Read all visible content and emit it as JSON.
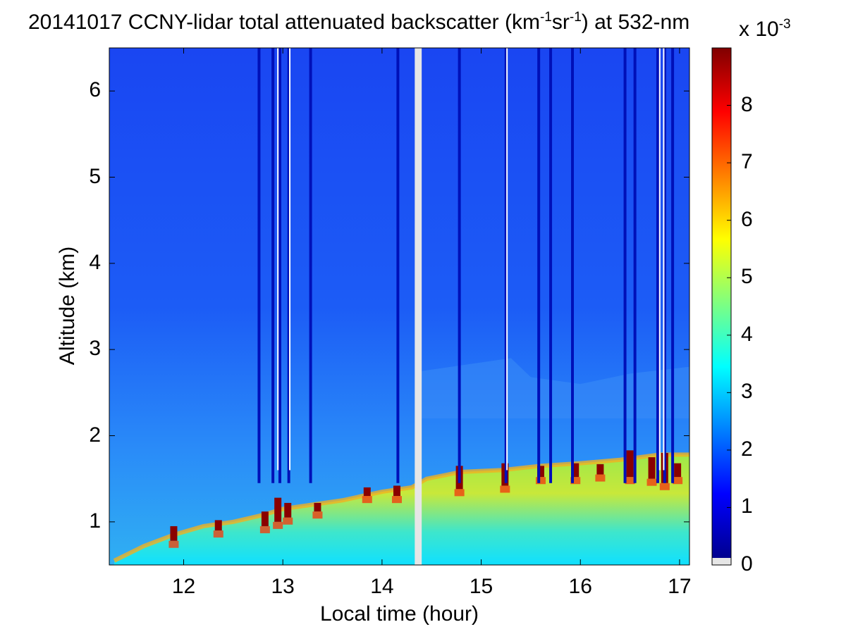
{
  "title": {
    "pre": "20141017 CCNY-lidar total attenuated backscatter (km",
    "sup1": "-1",
    "mid": "sr",
    "sup2": "-1",
    "post": ") at 532-nm"
  },
  "chart_data": {
    "type": "heatmap",
    "colormap": "jet",
    "xlabel": "Local time (hour)",
    "ylabel": "Altitude (km)",
    "xlim": [
      11.25,
      17.1
    ],
    "ylim": [
      0.5,
      6.5
    ],
    "xticks": [
      12,
      13,
      14,
      15,
      16,
      17
    ],
    "yticks": [
      1,
      2,
      3,
      4,
      5,
      6
    ],
    "data_gap": [
      14.33,
      14.4
    ],
    "colorbar": {
      "range": [
        0,
        0.009
      ],
      "ticks": [
        0,
        1,
        2,
        3,
        4,
        5,
        6,
        7,
        8
      ],
      "exponent_base": "x 10",
      "exponent_power": "-3",
      "low_color": "#e6e6e6"
    },
    "boundary_layer_top_km": [
      [
        11.3,
        0.55
      ],
      [
        11.6,
        0.72
      ],
      [
        11.9,
        0.85
      ],
      [
        12.2,
        0.95
      ],
      [
        12.5,
        1.0
      ],
      [
        12.8,
        1.08
      ],
      [
        13.0,
        1.15
      ],
      [
        13.3,
        1.2
      ],
      [
        13.6,
        1.25
      ],
      [
        14.0,
        1.35
      ],
      [
        14.3,
        1.4
      ],
      [
        14.45,
        1.5
      ],
      [
        14.8,
        1.58
      ],
      [
        15.2,
        1.6
      ],
      [
        15.6,
        1.65
      ],
      [
        16.0,
        1.68
      ],
      [
        16.4,
        1.72
      ],
      [
        16.8,
        1.78
      ],
      [
        17.1,
        1.78
      ]
    ],
    "cloud_tops": [
      {
        "x": 11.9,
        "base": 0.78,
        "top": 0.95
      },
      {
        "x": 12.35,
        "base": 0.9,
        "top": 1.02
      },
      {
        "x": 12.82,
        "base": 0.95,
        "top": 1.12
      },
      {
        "x": 12.95,
        "base": 1.0,
        "top": 1.28
      },
      {
        "x": 13.05,
        "base": 1.05,
        "top": 1.22
      },
      {
        "x": 13.35,
        "base": 1.12,
        "top": 1.22
      },
      {
        "x": 13.85,
        "base": 1.3,
        "top": 1.4
      },
      {
        "x": 14.15,
        "base": 1.3,
        "top": 1.42
      },
      {
        "x": 14.78,
        "base": 1.38,
        "top": 1.65
      },
      {
        "x": 15.24,
        "base": 1.42,
        "top": 1.68
      },
      {
        "x": 15.6,
        "base": 1.52,
        "top": 1.65
      },
      {
        "x": 15.95,
        "base": 1.52,
        "top": 1.68
      },
      {
        "x": 16.2,
        "base": 1.55,
        "top": 1.67
      },
      {
        "x": 16.5,
        "base": 1.52,
        "top": 1.83
      },
      {
        "x": 16.72,
        "base": 1.5,
        "top": 1.75
      },
      {
        "x": 16.85,
        "base": 1.45,
        "top": 1.8
      },
      {
        "x": 16.98,
        "base": 1.52,
        "top": 1.68
      }
    ],
    "aerosol_layer_top_km": [
      [
        14.4,
        2.75
      ],
      [
        15.0,
        2.85
      ],
      [
        15.3,
        2.9
      ],
      [
        15.5,
        2.68
      ],
      [
        16.0,
        2.6
      ],
      [
        16.5,
        2.72
      ],
      [
        17.1,
        2.8
      ]
    ],
    "attenuated_columns": [
      12.76,
      12.9,
      12.97,
      13.06,
      13.28,
      14.16,
      14.78,
      15.25,
      15.58,
      15.7,
      15.92,
      16.45,
      16.55,
      16.78,
      16.85,
      16.93
    ],
    "missing_columns": [
      12.95,
      13.07,
      15.26,
      16.8,
      16.84
    ]
  }
}
